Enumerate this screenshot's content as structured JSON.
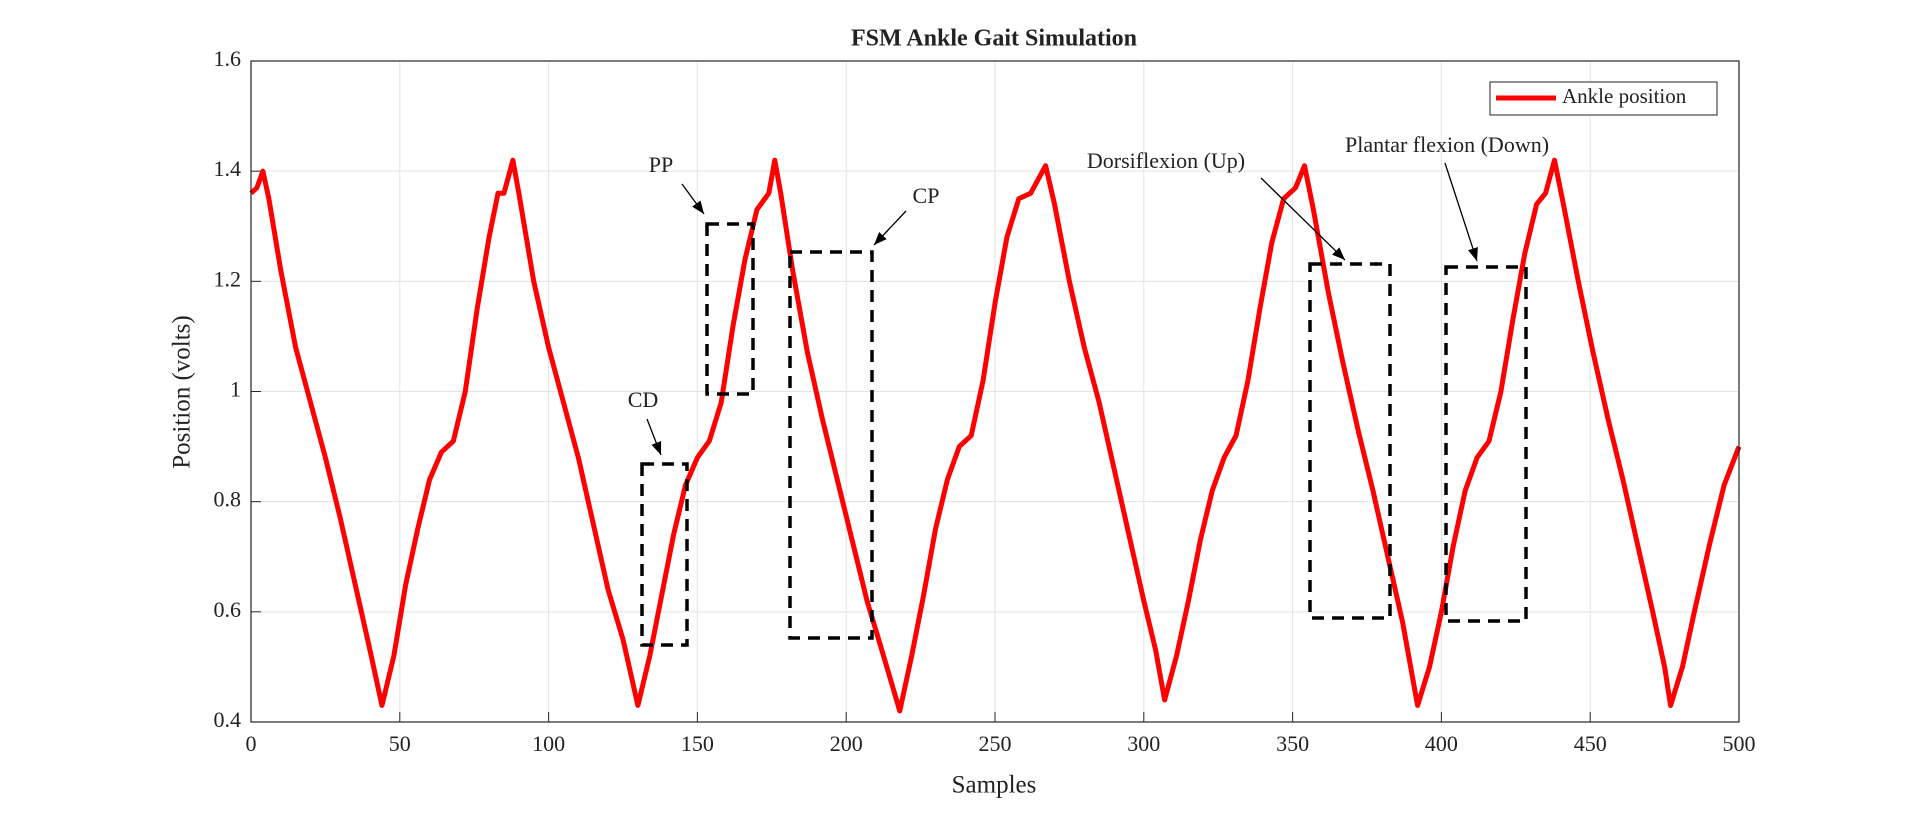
{
  "chart_data": {
    "type": "line",
    "title": "FSM Ankle Gait Simulation",
    "xlabel": "Samples",
    "ylabel": "Position (volts)",
    "x": [
      0,
      2,
      4,
      6,
      10,
      15,
      20,
      25,
      30,
      35,
      40,
      44,
      48,
      52,
      56,
      60,
      64,
      68,
      72,
      76,
      80,
      83,
      85,
      88,
      90,
      95,
      100,
      105,
      110,
      115,
      120,
      125,
      130,
      134,
      138,
      142,
      146,
      150,
      154,
      158,
      162,
      166,
      170,
      174,
      176,
      178,
      182,
      187,
      192,
      197,
      202,
      207,
      212,
      218,
      222,
      226,
      230,
      234,
      238,
      242,
      246,
      250,
      254,
      258,
      262,
      267,
      270,
      275,
      280,
      285,
      290,
      295,
      300,
      304,
      307,
      311,
      315,
      319,
      323,
      327,
      331,
      335,
      339,
      343,
      347,
      351,
      354,
      357,
      362,
      367,
      372,
      377,
      382,
      387,
      392,
      396,
      400,
      404,
      408,
      412,
      416,
      420,
      424,
      428,
      432,
      435,
      438,
      441,
      446,
      451,
      456,
      461,
      466,
      471,
      475,
      477,
      481,
      485,
      490,
      495,
      500
    ],
    "series": [
      {
        "name": "Ankle position",
        "color": "#ff0000",
        "values": [
          1.36,
          1.37,
          1.4,
          1.35,
          1.22,
          1.08,
          0.98,
          0.88,
          0.77,
          0.65,
          0.53,
          0.43,
          0.52,
          0.65,
          0.75,
          0.84,
          0.89,
          0.91,
          1.0,
          1.15,
          1.28,
          1.36,
          1.36,
          1.42,
          1.36,
          1.2,
          1.08,
          0.98,
          0.88,
          0.76,
          0.64,
          0.55,
          0.43,
          0.52,
          0.63,
          0.74,
          0.83,
          0.88,
          0.91,
          0.98,
          1.12,
          1.24,
          1.33,
          1.36,
          1.42,
          1.36,
          1.22,
          1.07,
          0.95,
          0.84,
          0.73,
          0.62,
          0.53,
          0.42,
          0.52,
          0.63,
          0.75,
          0.84,
          0.9,
          0.92,
          1.02,
          1.16,
          1.28,
          1.35,
          1.36,
          1.41,
          1.34,
          1.2,
          1.08,
          0.98,
          0.86,
          0.74,
          0.62,
          0.53,
          0.44,
          0.52,
          0.62,
          0.73,
          0.82,
          0.88,
          0.92,
          1.02,
          1.15,
          1.27,
          1.35,
          1.37,
          1.41,
          1.33,
          1.18,
          1.05,
          0.93,
          0.82,
          0.7,
          0.58,
          0.43,
          0.5,
          0.6,
          0.72,
          0.82,
          0.88,
          0.91,
          1.0,
          1.13,
          1.25,
          1.34,
          1.36,
          1.42,
          1.34,
          1.2,
          1.07,
          0.95,
          0.84,
          0.72,
          0.6,
          0.5,
          0.43,
          0.5,
          0.6,
          0.72,
          0.83,
          0.9
        ]
      }
    ],
    "xlim": [
      0,
      500
    ],
    "xticks": [
      0,
      50,
      100,
      150,
      200,
      250,
      300,
      350,
      400,
      450,
      500
    ],
    "ylim": [
      0.4,
      1.6
    ],
    "yticks": [
      0.4,
      0.6,
      0.8,
      1,
      1.2,
      1.4,
      1.6
    ],
    "grid": true,
    "legend": "upper right",
    "annotations": [
      "CD",
      "PP",
      "CP",
      "Dorsiflexion (Up)",
      "Plantar flexion (Down)"
    ]
  }
}
